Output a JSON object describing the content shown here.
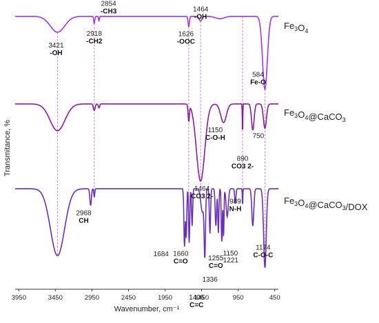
{
  "chart_data": {
    "type": "line",
    "xlabel": "Wavenumber, cm⁻¹",
    "ylabel": "Transmitance, %",
    "x_reversed": true,
    "xlim": [
      4000,
      400
    ],
    "x_ticks": [
      3950,
      3450,
      2950,
      2450,
      1950,
      1450,
      950,
      450
    ],
    "y_ticks_shown": false,
    "grid": false,
    "legend": "labels at right end of each curve",
    "colors": {
      "fe3o4": "#a335ee",
      "fe3o4_caco3": "#8b1a9e",
      "fe3o4_caco3_dox": "#6a2fb8",
      "guides": "#c040e0",
      "axis": "#333333"
    },
    "series": [
      {
        "name": "Fe3O4",
        "name_parts": [
          [
            "Fe",
            ""
          ],
          [
            "3",
            "sub"
          ],
          [
            "O",
            ""
          ],
          [
            "4",
            "sub"
          ]
        ],
        "offset": 0.55,
        "baseline": 5,
        "bands": [
          {
            "c": 3421,
            "w": 330,
            "d": 20
          },
          {
            "c": 2918,
            "w": 25,
            "d": 9
          },
          {
            "c": 2854,
            "w": 20,
            "d": 6
          },
          {
            "c": 1626,
            "w": 30,
            "d": 13
          },
          {
            "c": 1464,
            "w": 60,
            "d": 6
          },
          {
            "c": 1200,
            "w": 200,
            "d": 3
          },
          {
            "c": 584,
            "w": 110,
            "d": 92
          }
        ]
      },
      {
        "name": "Fe3O4@CaCO3",
        "name_parts": [
          [
            "Fe",
            ""
          ],
          [
            "3",
            "sub"
          ],
          [
            "O",
            ""
          ],
          [
            "4",
            "sub"
          ],
          [
            "@CaCO",
            ""
          ],
          [
            "3",
            "sub"
          ]
        ],
        "offset": 1.45,
        "baseline": 5,
        "bands": [
          {
            "c": 3421,
            "w": 340,
            "d": 33
          },
          {
            "c": 2918,
            "w": 40,
            "d": 8
          },
          {
            "c": 2854,
            "w": 30,
            "d": 5
          },
          {
            "c": 1626,
            "w": 30,
            "d": 20
          },
          {
            "c": 1464,
            "w": 190,
            "d": 95
          },
          {
            "c": 1150,
            "w": 130,
            "d": 23
          },
          {
            "c": 890,
            "w": 12,
            "d": 36
          },
          {
            "c": 750,
            "w": 60,
            "d": 32
          },
          {
            "c": 584,
            "w": 70,
            "d": 30
          }
        ]
      },
      {
        "name": "Fe3O4@CaCO3/DOX",
        "name_parts": [
          [
            "Fe",
            ""
          ],
          [
            "3",
            "sub"
          ],
          [
            "O",
            ""
          ],
          [
            "4",
            "sub"
          ],
          [
            "@CaCO",
            ""
          ],
          [
            "3",
            "sub"
          ],
          [
            "/DOX",
            ""
          ]
        ],
        "offset": 2.3,
        "baseline": 3,
        "bands": [
          {
            "c": 3421,
            "w": 320,
            "d": 72
          },
          {
            "c": 2968,
            "w": 35,
            "d": 18
          },
          {
            "c": 2918,
            "w": 22,
            "d": 9
          },
          {
            "c": 1684,
            "w": 28,
            "d": 62
          },
          {
            "c": 1660,
            "w": 24,
            "d": 52
          },
          {
            "c": 1620,
            "w": 26,
            "d": 58
          },
          {
            "c": 1580,
            "w": 26,
            "d": 40
          },
          {
            "c": 1440,
            "w": 70,
            "d": 25
          },
          {
            "c": 1406,
            "w": 32,
            "d": 68
          },
          {
            "c": 1336,
            "w": 28,
            "d": 48
          },
          {
            "c": 1255,
            "w": 32,
            "d": 40
          },
          {
            "c": 1221,
            "w": 24,
            "d": 48
          },
          {
            "c": 1174,
            "w": 25,
            "d": 58
          },
          {
            "c": 1150,
            "w": 20,
            "d": 52
          },
          {
            "c": 1100,
            "w": 50,
            "d": 30
          },
          {
            "c": 989,
            "w": 28,
            "d": 16
          },
          {
            "c": 890,
            "w": 12,
            "d": 18
          },
          {
            "c": 750,
            "w": 45,
            "d": 40
          },
          {
            "c": 584,
            "w": 60,
            "d": 85
          }
        ]
      }
    ],
    "guide_lines": [
      3421,
      2918,
      1626,
      1464,
      890,
      584
    ],
    "annotations": [
      {
        "num": "3421",
        "group": "-OH",
        "series": 0,
        "x": 3421
      },
      {
        "num": "2918",
        "group": "-CH2",
        "series": 0,
        "x": 2918
      },
      {
        "num": "2854",
        "group": "-CH3",
        "series": 0,
        "x": 2854
      },
      {
        "num": "1626",
        "group": "-OOC",
        "series": 0,
        "x": 1626
      },
      {
        "num": "1464",
        "group": "-OH",
        "series": 0,
        "x": 1464
      },
      {
        "num": "584",
        "group": "Fe-O",
        "series": 0,
        "x": 584
      },
      {
        "num": "1150",
        "group": "C-O-H",
        "series": 1,
        "x": 1150
      },
      {
        "num": "750",
        "group": "",
        "series": 1,
        "x": 750
      },
      {
        "num": "890",
        "group": "CO3 2-",
        "series": 1,
        "x": 890
      },
      {
        "num": "1464",
        "group": "CO3 2-",
        "series": 1,
        "x": 1464
      },
      {
        "num": "2968",
        "group": "CH",
        "series": 2,
        "x": 2968
      },
      {
        "num": "989",
        "group": "N-H",
        "series": 2,
        "x": 989
      },
      {
        "num": "1684",
        "group": "",
        "series": 2,
        "x": 1684
      },
      {
        "num": "1660",
        "group": "C=O",
        "series": 2,
        "x": 1660
      },
      {
        "num": "1406",
        "group": "C=C",
        "series": 2,
        "x": 1406
      },
      {
        "num": "1336",
        "group": "",
        "series": 2,
        "x": 1336
      },
      {
        "num": "1255",
        "group": "C=O",
        "series": 2,
        "x": 1255
      },
      {
        "num": "1221",
        "group": "",
        "series": 2,
        "x": 1221
      },
      {
        "num": "1150",
        "group": "",
        "series": 2,
        "x": 1150
      },
      {
        "num": "1174",
        "group": "C-O-C",
        "series": 2,
        "x": 1174
      }
    ]
  }
}
